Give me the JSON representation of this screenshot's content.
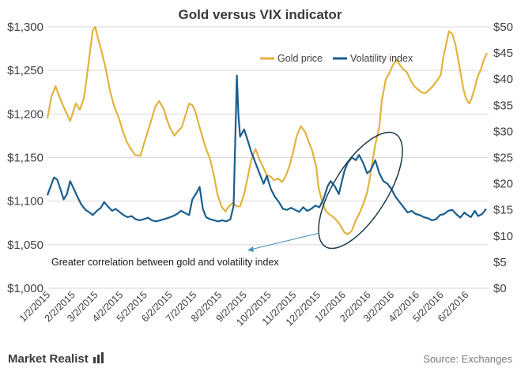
{
  "chart_data": {
    "type": "line",
    "title": "Gold versus VIX indicator",
    "x_dates": [
      "1/2/2015",
      "2/2/2015",
      "3/2/2015",
      "4/2/2015",
      "5/2/2015",
      "6/2/2015",
      "7/2/2015",
      "8/2/2015",
      "9/2/2015",
      "10/2/2015",
      "11/2/2015",
      "12/2/2015",
      "1/2/2016",
      "2/2/2016",
      "3/2/2016",
      "4/2/2016",
      "5/2/2016",
      "6/2/2016"
    ],
    "y_left_ticks": [
      "$1,000",
      "$1,050",
      "$1,100",
      "$1,150",
      "$1,200",
      "$1,250",
      "$1,300"
    ],
    "y_right_ticks": [
      "$0",
      "$5",
      "$10",
      "$15",
      "$20",
      "$25",
      "$30",
      "$35",
      "$40",
      "$45",
      "$50"
    ],
    "y_left_range": [
      1000,
      1300
    ],
    "y_right_range": [
      0,
      50
    ],
    "legend": {
      "placement": "top-right",
      "entries": [
        "Gold price",
        "Volatility index"
      ]
    },
    "series": [
      {
        "name": "Gold price",
        "axis": "left",
        "color": "#E1B340",
        "points": [
          [
            "2015-01-02",
            1195
          ],
          [
            "2015-01-07",
            1220
          ],
          [
            "2015-01-12",
            1232
          ],
          [
            "2015-01-16",
            1222
          ],
          [
            "2015-01-21",
            1210
          ],
          [
            "2015-01-26",
            1200
          ],
          [
            "2015-01-30",
            1192
          ],
          [
            "2015-02-02",
            1200
          ],
          [
            "2015-02-06",
            1212
          ],
          [
            "2015-02-11",
            1205
          ],
          [
            "2015-02-16",
            1218
          ],
          [
            "2015-02-20",
            1245
          ],
          [
            "2015-02-24",
            1275
          ],
          [
            "2015-02-27",
            1296
          ],
          [
            "2015-03-02",
            1300
          ],
          [
            "2015-03-06",
            1285
          ],
          [
            "2015-03-11",
            1268
          ],
          [
            "2015-03-16",
            1248
          ],
          [
            "2015-03-20",
            1228
          ],
          [
            "2015-03-25",
            1210
          ],
          [
            "2015-03-31",
            1196
          ],
          [
            "2015-04-06",
            1178
          ],
          [
            "2015-04-10",
            1168
          ],
          [
            "2015-04-15",
            1160
          ],
          [
            "2015-04-20",
            1153
          ],
          [
            "2015-04-27",
            1152
          ],
          [
            "2015-05-01",
            1165
          ],
          [
            "2015-05-06",
            1180
          ],
          [
            "2015-05-11",
            1195
          ],
          [
            "2015-05-15",
            1208
          ],
          [
            "2015-05-20",
            1215
          ],
          [
            "2015-05-26",
            1205
          ],
          [
            "2015-05-29",
            1195
          ],
          [
            "2015-06-02",
            1185
          ],
          [
            "2015-06-08",
            1175
          ],
          [
            "2015-06-12",
            1180
          ],
          [
            "2015-06-17",
            1185
          ],
          [
            "2015-06-22",
            1200
          ],
          [
            "2015-06-26",
            1212
          ],
          [
            "2015-06-30",
            1210
          ],
          [
            "2015-07-03",
            1205
          ],
          [
            "2015-07-08",
            1188
          ],
          [
            "2015-07-13",
            1172
          ],
          [
            "2015-07-17",
            1160
          ],
          [
            "2015-07-22",
            1148
          ],
          [
            "2015-07-27",
            1128
          ],
          [
            "2015-07-31",
            1108
          ],
          [
            "2015-08-05",
            1094
          ],
          [
            "2015-08-10",
            1088
          ],
          [
            "2015-08-14",
            1094
          ],
          [
            "2015-08-19",
            1098
          ],
          [
            "2015-08-24",
            1094
          ],
          [
            "2015-08-28",
            1094
          ],
          [
            "2015-09-02",
            1108
          ],
          [
            "2015-09-07",
            1130
          ],
          [
            "2015-09-11",
            1148
          ],
          [
            "2015-09-16",
            1160
          ],
          [
            "2015-09-21",
            1148
          ],
          [
            "2015-09-25",
            1140
          ],
          [
            "2015-09-30",
            1130
          ],
          [
            "2015-10-05",
            1128
          ],
          [
            "2015-10-09",
            1124
          ],
          [
            "2015-10-14",
            1126
          ],
          [
            "2015-10-19",
            1122
          ],
          [
            "2015-10-23",
            1128
          ],
          [
            "2015-10-28",
            1140
          ],
          [
            "2015-11-02",
            1158
          ],
          [
            "2015-11-06",
            1175
          ],
          [
            "2015-11-11",
            1186
          ],
          [
            "2015-11-16",
            1180
          ],
          [
            "2015-11-20",
            1170
          ],
          [
            "2015-11-25",
            1158
          ],
          [
            "2015-11-30",
            1140
          ],
          [
            "2015-12-03",
            1115
          ],
          [
            "2015-12-08",
            1098
          ],
          [
            "2015-12-11",
            1090
          ],
          [
            "2015-12-16",
            1085
          ],
          [
            "2015-12-21",
            1082
          ],
          [
            "2015-12-28",
            1075
          ],
          [
            "2016-01-04",
            1064
          ],
          [
            "2016-01-08",
            1062
          ],
          [
            "2016-01-13",
            1066
          ],
          [
            "2016-01-18",
            1078
          ],
          [
            "2016-01-22",
            1085
          ],
          [
            "2016-01-27",
            1096
          ],
          [
            "2016-02-01",
            1110
          ],
          [
            "2016-02-04",
            1125
          ],
          [
            "2016-02-08",
            1148
          ],
          [
            "2016-02-11",
            1165
          ],
          [
            "2016-02-16",
            1185
          ],
          [
            "2016-02-19",
            1215
          ],
          [
            "2016-02-24",
            1240
          ],
          [
            "2016-02-29",
            1248
          ],
          [
            "2016-03-03",
            1255
          ],
          [
            "2016-03-08",
            1262
          ],
          [
            "2016-03-11",
            1258
          ],
          [
            "2016-03-16",
            1252
          ],
          [
            "2016-03-21",
            1248
          ],
          [
            "2016-03-25",
            1240
          ],
          [
            "2016-03-30",
            1232
          ],
          [
            "2016-04-04",
            1228
          ],
          [
            "2016-04-08",
            1225
          ],
          [
            "2016-04-13",
            1224
          ],
          [
            "2016-04-18",
            1228
          ],
          [
            "2016-04-22",
            1232
          ],
          [
            "2016-04-27",
            1238
          ],
          [
            "2016-05-02",
            1245
          ],
          [
            "2016-05-05",
            1265
          ],
          [
            "2016-05-09",
            1282
          ],
          [
            "2016-05-12",
            1295
          ],
          [
            "2016-05-16",
            1292
          ],
          [
            "2016-05-20",
            1280
          ],
          [
            "2016-05-25",
            1255
          ],
          [
            "2016-05-30",
            1228
          ],
          [
            "2016-06-02",
            1218
          ],
          [
            "2016-06-06",
            1212
          ],
          [
            "2016-06-09",
            1218
          ],
          [
            "2016-06-13",
            1230
          ],
          [
            "2016-06-16",
            1242
          ],
          [
            "2016-06-20",
            1250
          ],
          [
            "2016-06-24",
            1262
          ],
          [
            "2016-06-28",
            1270
          ]
        ]
      },
      {
        "name": "Volatility index",
        "axis": "right",
        "color": "#1A5E8E",
        "points": [
          [
            "2015-01-02",
            17.8
          ],
          [
            "2015-01-06",
            19.5
          ],
          [
            "2015-01-10",
            21.2
          ],
          [
            "2015-01-14",
            20.8
          ],
          [
            "2015-01-18",
            19.0
          ],
          [
            "2015-01-22",
            17.0
          ],
          [
            "2015-01-26",
            18.0
          ],
          [
            "2015-01-30",
            20.5
          ],
          [
            "2015-02-03",
            19.2
          ],
          [
            "2015-02-08",
            17.5
          ],
          [
            "2015-02-13",
            16.0
          ],
          [
            "2015-02-18",
            15.0
          ],
          [
            "2015-02-23",
            14.5
          ],
          [
            "2015-02-27",
            14.0
          ],
          [
            "2015-03-04",
            14.8
          ],
          [
            "2015-03-09",
            15.4
          ],
          [
            "2015-03-13",
            16.5
          ],
          [
            "2015-03-18",
            15.6
          ],
          [
            "2015-03-23",
            14.8
          ],
          [
            "2015-03-27",
            15.2
          ],
          [
            "2015-04-01",
            14.6
          ],
          [
            "2015-04-06",
            14.0
          ],
          [
            "2015-04-11",
            13.6
          ],
          [
            "2015-04-16",
            13.8
          ],
          [
            "2015-04-21",
            13.2
          ],
          [
            "2015-04-26",
            13.0
          ],
          [
            "2015-05-01",
            13.2
          ],
          [
            "2015-05-06",
            13.5
          ],
          [
            "2015-05-11",
            13.0
          ],
          [
            "2015-05-16",
            12.8
          ],
          [
            "2015-05-21",
            13.0
          ],
          [
            "2015-05-26",
            13.2
          ],
          [
            "2015-06-01",
            13.5
          ],
          [
            "2015-06-06",
            13.8
          ],
          [
            "2015-06-11",
            14.2
          ],
          [
            "2015-06-16",
            14.8
          ],
          [
            "2015-06-21",
            14.4
          ],
          [
            "2015-06-26",
            14.0
          ],
          [
            "2015-06-30",
            17.0
          ],
          [
            "2015-07-05",
            18.2
          ],
          [
            "2015-07-09",
            19.4
          ],
          [
            "2015-07-13",
            15.2
          ],
          [
            "2015-07-17",
            13.6
          ],
          [
            "2015-07-22",
            13.2
          ],
          [
            "2015-07-27",
            13.0
          ],
          [
            "2015-08-01",
            12.8
          ],
          [
            "2015-08-06",
            13.0
          ],
          [
            "2015-08-11",
            12.8
          ],
          [
            "2015-08-16",
            13.2
          ],
          [
            "2015-08-20",
            15.8
          ],
          [
            "2015-08-24",
            40.7
          ],
          [
            "2015-08-26",
            33.0
          ],
          [
            "2015-08-28",
            29.0
          ],
          [
            "2015-09-02",
            30.4
          ],
          [
            "2015-09-07",
            28.0
          ],
          [
            "2015-09-11",
            26.0
          ],
          [
            "2015-09-16",
            24.0
          ],
          [
            "2015-09-21",
            22.0
          ],
          [
            "2015-09-26",
            20.0
          ],
          [
            "2015-09-30",
            21.5
          ],
          [
            "2015-10-05",
            19.0
          ],
          [
            "2015-10-10",
            17.5
          ],
          [
            "2015-10-15",
            16.5
          ],
          [
            "2015-10-20",
            15.2
          ],
          [
            "2015-10-25",
            15.0
          ],
          [
            "2015-10-30",
            15.4
          ],
          [
            "2015-11-04",
            15.0
          ],
          [
            "2015-11-09",
            14.6
          ],
          [
            "2015-11-14",
            15.5
          ],
          [
            "2015-11-19",
            14.8
          ],
          [
            "2015-11-24",
            15.2
          ],
          [
            "2015-11-29",
            15.8
          ],
          [
            "2015-12-04",
            15.5
          ],
          [
            "2015-12-09",
            17.0
          ],
          [
            "2015-12-14",
            19.5
          ],
          [
            "2015-12-18",
            20.5
          ],
          [
            "2015-12-23",
            19.5
          ],
          [
            "2015-12-28",
            18.0
          ],
          [
            "2015-12-31",
            20.0
          ],
          [
            "2016-01-04",
            22.5
          ],
          [
            "2016-01-08",
            24.0
          ],
          [
            "2016-01-13",
            25.0
          ],
          [
            "2016-01-18",
            24.5
          ],
          [
            "2016-01-22",
            25.5
          ],
          [
            "2016-01-27",
            24.0
          ],
          [
            "2016-02-01",
            22.0
          ],
          [
            "2016-02-05",
            22.5
          ],
          [
            "2016-02-09",
            23.8
          ],
          [
            "2016-02-11",
            24.5
          ],
          [
            "2016-02-16",
            22.0
          ],
          [
            "2016-02-21",
            20.5
          ],
          [
            "2016-02-26",
            20.0
          ],
          [
            "2016-03-02",
            19.0
          ],
          [
            "2016-03-07",
            17.5
          ],
          [
            "2016-03-12",
            16.5
          ],
          [
            "2016-03-17",
            15.5
          ],
          [
            "2016-03-22",
            14.5
          ],
          [
            "2016-03-27",
            14.8
          ],
          [
            "2016-04-01",
            14.2
          ],
          [
            "2016-04-06",
            14.0
          ],
          [
            "2016-04-11",
            13.6
          ],
          [
            "2016-04-16",
            13.4
          ],
          [
            "2016-04-21",
            13.0
          ],
          [
            "2016-04-26",
            13.2
          ],
          [
            "2016-05-01",
            14.0
          ],
          [
            "2016-05-06",
            14.2
          ],
          [
            "2016-05-11",
            14.8
          ],
          [
            "2016-05-16",
            15.0
          ],
          [
            "2016-05-21",
            14.2
          ],
          [
            "2016-05-26",
            13.5
          ],
          [
            "2016-05-31",
            14.5
          ],
          [
            "2016-06-04",
            14.0
          ],
          [
            "2016-06-08",
            13.6
          ],
          [
            "2016-06-13",
            14.8
          ],
          [
            "2016-06-17",
            13.8
          ],
          [
            "2016-06-22",
            14.2
          ],
          [
            "2016-06-27",
            15.2
          ]
        ]
      }
    ],
    "annotations": [
      {
        "text": "Greater correlation between gold and volatility index"
      }
    ]
  },
  "footer": {
    "source": "Source: Exchanges",
    "brand": "Market Realist"
  }
}
